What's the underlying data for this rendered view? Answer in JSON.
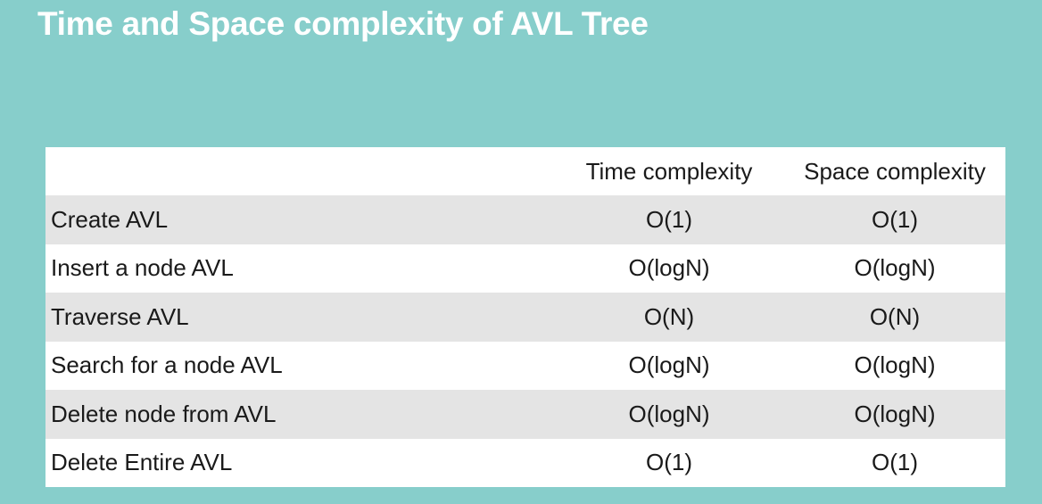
{
  "slide": {
    "title": "Time and Space complexity of AVL Tree"
  },
  "table": {
    "headers": [
      "",
      "Time complexity",
      "Space complexity"
    ],
    "rows": [
      {
        "operation": "Create AVL",
        "time": "O(1)",
        "space": "O(1)"
      },
      {
        "operation": "Insert a node AVL",
        "time": "O(logN)",
        "space": "O(logN)"
      },
      {
        "operation": "Traverse AVL",
        "time": "O(N)",
        "space": "O(N)"
      },
      {
        "operation": "Search for a node AVL",
        "time": "O(logN)",
        "space": "O(logN)"
      },
      {
        "operation": "Delete node from AVL",
        "time": "O(logN)",
        "space": "O(logN)"
      },
      {
        "operation": "Delete Entire AVL",
        "time": "O(1)",
        "space": "O(1)"
      }
    ]
  },
  "colors": {
    "background": "#87cecb",
    "title_text": "#ffffff",
    "table_background": "#ffffff",
    "shaded_row": "#e4e4e4"
  }
}
